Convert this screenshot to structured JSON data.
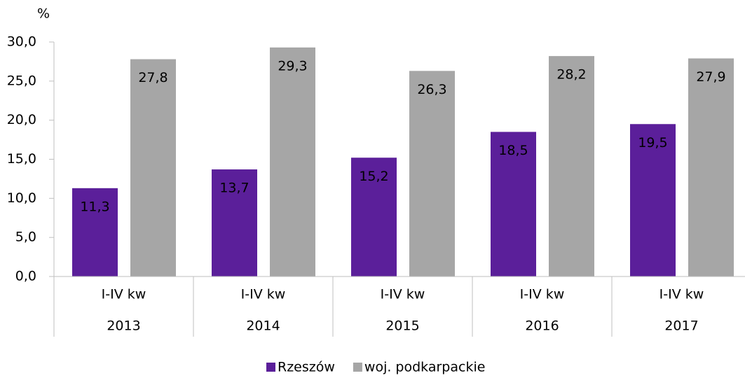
{
  "chart_data": {
    "type": "bar",
    "y_label": "%",
    "categories": [
      "2013",
      "2014",
      "2015",
      "2016",
      "2017"
    ],
    "subcategories": [
      "I-IV kw",
      "I-IV kw",
      "I-IV kw",
      "I-IV kw",
      "I-IV kw"
    ],
    "series": [
      {
        "name": "Rzeszów",
        "color": "#5b1f9a",
        "values": [
          11.3,
          13.7,
          15.2,
          18.5,
          19.5
        ],
        "value_labels": [
          "11,3",
          "13,7",
          "15,2",
          "18,5",
          "19,5"
        ]
      },
      {
        "name": "woj. podkarpackie",
        "color": "#a6a6a6",
        "values": [
          27.8,
          29.3,
          26.3,
          28.2,
          27.9
        ],
        "value_labels": [
          "27,8",
          "29,3",
          "26,3",
          "28,2",
          "27,9"
        ]
      }
    ],
    "ylim": [
      0,
      30
    ],
    "yticks": [
      {
        "value": 0,
        "label": "0,0"
      },
      {
        "value": 5,
        "label": "5,0"
      },
      {
        "value": 10,
        "label": "10,0"
      },
      {
        "value": 15,
        "label": "15,0"
      },
      {
        "value": 20,
        "label": "20,0"
      },
      {
        "value": 25,
        "label": "25,0"
      },
      {
        "value": 30,
        "label": "30,0"
      }
    ],
    "legend": "bottom"
  }
}
